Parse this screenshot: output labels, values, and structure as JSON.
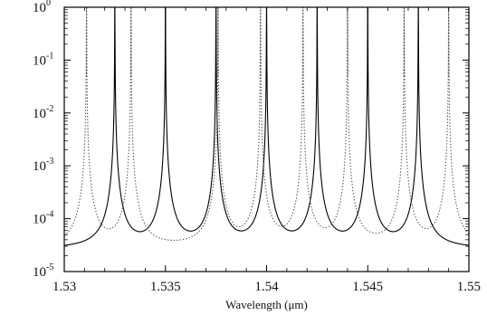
{
  "chart_data": {
    "type": "line",
    "title": "",
    "xlabel": "Wavelength (μm)",
    "ylabel": "",
    "y_scale": "log",
    "xlim": [
      1.53,
      1.55
    ],
    "ylim": [
      1e-05,
      1
    ],
    "grid": false,
    "legend": "none",
    "x_ticks": [
      {
        "value": 1.53,
        "label": "1.53"
      },
      {
        "value": 1.535,
        "label": "1.535"
      },
      {
        "value": 1.54,
        "label": "1.54"
      },
      {
        "value": 1.545,
        "label": "1.545"
      },
      {
        "value": 1.55,
        "label": "1.55"
      }
    ],
    "y_ticks": [
      {
        "value": 1e-05,
        "base": "10",
        "exp": "-5"
      },
      {
        "value": 0.0001,
        "base": "10",
        "exp": "-4"
      },
      {
        "value": 0.001,
        "base": "10",
        "exp": "-3"
      },
      {
        "value": 0.01,
        "base": "10",
        "exp": "-2"
      },
      {
        "value": 0.1,
        "base": "10",
        "exp": "-1"
      },
      {
        "value": 1,
        "base": "10",
        "exp": "0"
      }
    ],
    "series": [
      {
        "style": "solid",
        "color": "#000000",
        "peak_wavelengths": [
          1.5325,
          1.535,
          1.5375,
          1.54,
          1.5425,
          1.545,
          1.5475
        ],
        "peak_value": 1,
        "minimum_value": 2.6e-05
      },
      {
        "style": "dotted",
        "color": "#555555",
        "peak_wavelengths": [
          1.5311,
          1.5333,
          1.5376,
          1.5397,
          1.5418,
          1.544,
          1.5468,
          1.549
        ],
        "peak_value": 1,
        "minimum_value": 2.6e-05
      }
    ]
  }
}
